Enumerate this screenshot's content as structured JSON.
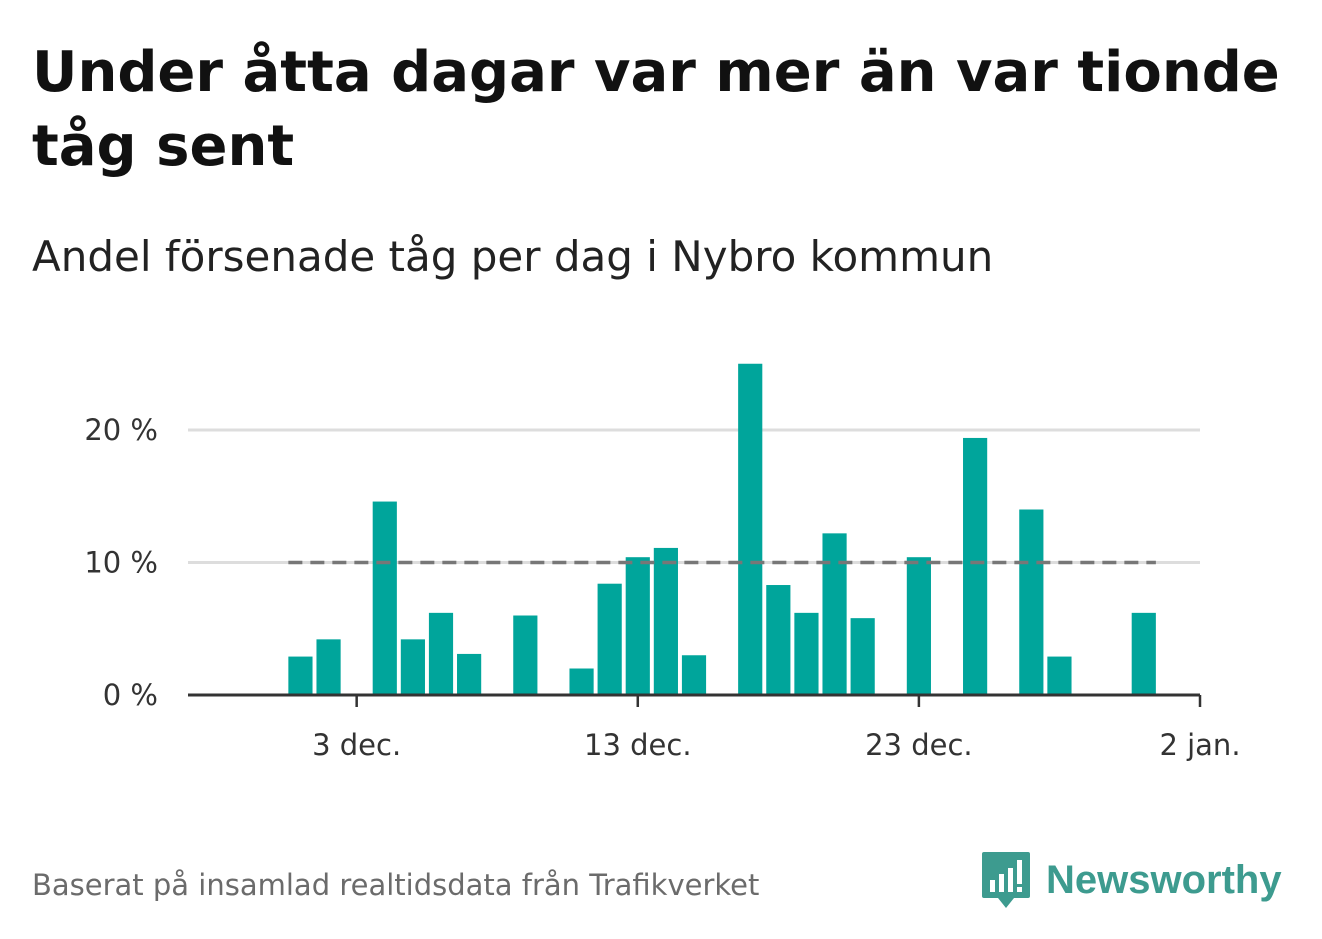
{
  "header": {
    "title": "Under åtta dagar var mer än var tionde tåg sent",
    "subtitle": "Andel försenade tåg per dag i Nybro kommun"
  },
  "footer": {
    "source": "Baserat på insamlad realtidsdata från Trafikverket",
    "brand": "Newsworthy"
  },
  "colors": {
    "bar": "#00a59b",
    "reference_line": "#777777",
    "gridline": "#dddddd",
    "axis": "#333333",
    "brand": "#3d9b8f"
  },
  "chart_data": {
    "type": "bar",
    "title": "Under åtta dagar var mer än var tionde tåg sent",
    "subtitle": "Andel försenade tåg per dag i Nybro kommun",
    "xlabel": "",
    "ylabel": "",
    "x_ticks": [
      {
        "date": "2023-12-03",
        "label": "3 dec."
      },
      {
        "date": "2023-12-13",
        "label": "13 dec."
      },
      {
        "date": "2023-12-23",
        "label": "23 dec."
      },
      {
        "date": "2024-01-02",
        "label": "2 jan."
      }
    ],
    "y_ticks": [
      {
        "value": 0,
        "label": "0 %"
      },
      {
        "value": 10,
        "label": "10 %"
      },
      {
        "value": 20,
        "label": "20 %"
      }
    ],
    "ylim": [
      0,
      25
    ],
    "xlim": [
      "2023-11-27",
      "2024-01-02"
    ],
    "grid": true,
    "reference_line": {
      "value": 10,
      "style": "dashed",
      "from": "2023-12-01",
      "to": "2023-12-31"
    },
    "unit": "%",
    "dates": [
      "2023-12-01",
      "2023-12-02",
      "2023-12-03",
      "2023-12-04",
      "2023-12-05",
      "2023-12-06",
      "2023-12-07",
      "2023-12-08",
      "2023-12-09",
      "2023-12-10",
      "2023-12-11",
      "2023-12-12",
      "2023-12-13",
      "2023-12-14",
      "2023-12-15",
      "2023-12-16",
      "2023-12-17",
      "2023-12-18",
      "2023-12-19",
      "2023-12-20",
      "2023-12-21",
      "2023-12-22",
      "2023-12-23",
      "2023-12-24",
      "2023-12-25",
      "2023-12-26",
      "2023-12-27",
      "2023-12-28",
      "2023-12-29",
      "2023-12-30",
      "2023-12-31"
    ],
    "values": [
      2.9,
      4.2,
      0,
      14.6,
      4.2,
      6.2,
      3.1,
      0,
      6.0,
      0,
      2.0,
      8.4,
      10.4,
      11.1,
      3.0,
      0,
      25.0,
      8.3,
      6.2,
      12.2,
      5.8,
      0,
      10.4,
      0,
      19.4,
      0,
      14.0,
      2.9,
      0,
      0,
      6.2
    ]
  }
}
